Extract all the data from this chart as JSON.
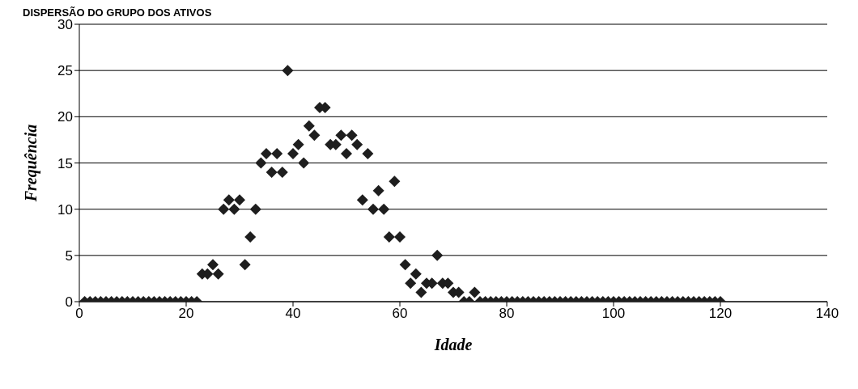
{
  "chart_data": {
    "type": "scatter",
    "title": "DISPERSÃO DO GRUPO DOS ATIVOS",
    "xlabel": "Idade",
    "ylabel": "Frequência",
    "x": [
      1,
      2,
      3,
      4,
      5,
      6,
      7,
      8,
      9,
      10,
      11,
      12,
      13,
      14,
      15,
      16,
      17,
      18,
      19,
      20,
      21,
      22,
      23,
      24,
      25,
      26,
      27,
      28,
      29,
      30,
      31,
      32,
      33,
      34,
      35,
      36,
      37,
      38,
      39,
      40,
      41,
      42,
      43,
      44,
      45,
      46,
      47,
      48,
      49,
      50,
      51,
      52,
      53,
      54,
      55,
      56,
      57,
      58,
      59,
      60,
      61,
      62,
      63,
      64,
      65,
      66,
      67,
      68,
      69,
      70,
      71,
      72,
      73,
      74,
      75,
      76,
      77,
      78,
      79,
      80,
      81,
      82,
      83,
      84,
      85,
      86,
      87,
      88,
      89,
      90,
      91,
      92,
      93,
      94,
      95,
      96,
      97,
      98,
      99,
      100,
      101,
      102,
      103,
      104,
      105,
      106,
      107,
      108,
      109,
      110,
      111,
      112,
      113,
      114,
      115,
      116,
      117,
      118,
      119,
      120
    ],
    "values": [
      0,
      0,
      0,
      0,
      0,
      0,
      0,
      0,
      0,
      0,
      0,
      0,
      0,
      0,
      0,
      0,
      0,
      0,
      0,
      0,
      0,
      0,
      3,
      3,
      4,
      3,
      10,
      11,
      10,
      11,
      4,
      7,
      10,
      15,
      16,
      14,
      16,
      14,
      25,
      16,
      17,
      15,
      19,
      18,
      21,
      21,
      17,
      17,
      18,
      16,
      18,
      17,
      11,
      16,
      10,
      12,
      10,
      7,
      13,
      7,
      4,
      2,
      3,
      1,
      2,
      2,
      5,
      2,
      2,
      1,
      1,
      0,
      0,
      1,
      0,
      0,
      0,
      0,
      0,
      0,
      0,
      0,
      0,
      0,
      0,
      0,
      0,
      0,
      0,
      0,
      0,
      0,
      0,
      0,
      0,
      0,
      0,
      0,
      0,
      0,
      0,
      0,
      0,
      0,
      0,
      0,
      0,
      0,
      0,
      0,
      0,
      0,
      0,
      0,
      0,
      0,
      0,
      0,
      0,
      0
    ],
    "color": "#1e1e1e",
    "marker": "diamond",
    "grid": "y",
    "xlim": [
      0,
      140
    ],
    "xticks": [
      0,
      20,
      40,
      60,
      80,
      100,
      120,
      140
    ],
    "ylim": [
      0,
      30
    ],
    "yticks": [
      0,
      5,
      10,
      15,
      20,
      25,
      30
    ]
  }
}
